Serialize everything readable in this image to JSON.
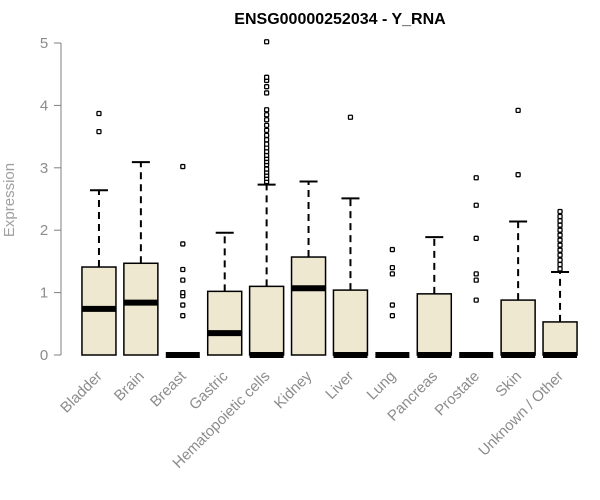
{
  "colors": {
    "box_fill": "#efe8d0",
    "box_stroke": "#000000",
    "axis": "#7f7f7f",
    "tick_text": "#8c8c8c",
    "ylabel_text": "#a0a0a0",
    "title_text": "#000000"
  },
  "chart_data": {
    "type": "boxplot",
    "title": "ENSG00000252034 - Y_RNA",
    "xlabel": "",
    "ylabel": "Expression",
    "ylim": [
      0,
      5
    ],
    "yticks": [
      0,
      1,
      2,
      3,
      4,
      5
    ],
    "grid": false,
    "legend": "none",
    "categories": [
      "Bladder",
      "Brain",
      "Breast",
      "Gastric",
      "Hematopoietic cells",
      "Kidney",
      "Liver",
      "Lung",
      "Pancreas",
      "Prostate",
      "Skin",
      "Unknown / Other"
    ],
    "boxes": [
      {
        "category": "Bladder",
        "q1": 0.0,
        "median": 0.74,
        "q3": 1.41,
        "whisker_low": 0.0,
        "whisker_high": 2.64,
        "outliers": [
          3.58,
          3.87
        ]
      },
      {
        "category": "Brain",
        "q1": 0.0,
        "median": 0.84,
        "q3": 1.47,
        "whisker_low": 0.0,
        "whisker_high": 3.09,
        "outliers": []
      },
      {
        "category": "Breast",
        "q1": 0.0,
        "median": 0.0,
        "q3": 0.0,
        "whisker_low": 0.0,
        "whisker_high": 0.0,
        "outliers": [
          0.63,
          0.8,
          0.95,
          1.0,
          1.2,
          1.37,
          1.78,
          3.02
        ]
      },
      {
        "category": "Gastric",
        "q1": 0.0,
        "median": 0.35,
        "q3": 1.02,
        "whisker_low": 0.0,
        "whisker_high": 1.96,
        "outliers": []
      },
      {
        "category": "Hematopoietic cells",
        "q1": 0.0,
        "median": 0.0,
        "q3": 1.1,
        "whisker_low": 0.0,
        "whisker_high": 2.73,
        "outliers": [
          2.78,
          2.83,
          2.88,
          2.93,
          2.98,
          3.05,
          3.1,
          3.15,
          3.2,
          3.26,
          3.32,
          3.38,
          3.45,
          3.52,
          3.6,
          3.68,
          3.77,
          3.85,
          3.93,
          4.2,
          4.3,
          4.4,
          4.45,
          5.02
        ]
      },
      {
        "category": "Kidney",
        "q1": 0.0,
        "median": 1.07,
        "q3": 1.57,
        "whisker_low": 0.0,
        "whisker_high": 2.78,
        "outliers": []
      },
      {
        "category": "Liver",
        "q1": 0.0,
        "median": 0.0,
        "q3": 1.04,
        "whisker_low": 0.0,
        "whisker_high": 2.51,
        "outliers": [
          3.81
        ]
      },
      {
        "category": "Lung",
        "q1": 0.0,
        "median": 0.0,
        "q3": 0.0,
        "whisker_low": 0.0,
        "whisker_high": 0.0,
        "outliers": [
          0.63,
          0.8,
          1.3,
          1.4,
          1.69
        ]
      },
      {
        "category": "Pancreas",
        "q1": 0.0,
        "median": 0.0,
        "q3": 0.98,
        "whisker_low": 0.0,
        "whisker_high": 1.89,
        "outliers": []
      },
      {
        "category": "Prostate",
        "q1": 0.0,
        "median": 0.0,
        "q3": 0.0,
        "whisker_low": 0.0,
        "whisker_high": 0.0,
        "outliers": [
          0.88,
          1.2,
          1.3,
          1.87,
          2.4,
          2.84
        ]
      },
      {
        "category": "Skin",
        "q1": 0.0,
        "median": 0.0,
        "q3": 0.88,
        "whisker_low": 0.0,
        "whisker_high": 2.14,
        "outliers": [
          2.89,
          3.92
        ]
      },
      {
        "category": "Unknown / Other",
        "q1": 0.0,
        "median": 0.0,
        "q3": 0.53,
        "whisker_low": 0.0,
        "whisker_high": 1.33,
        "outliers": [
          1.38,
          1.45,
          1.52,
          1.6,
          1.68,
          1.76,
          1.84,
          1.92,
          2.0,
          2.08,
          2.15,
          2.22,
          2.3
        ]
      }
    ]
  }
}
